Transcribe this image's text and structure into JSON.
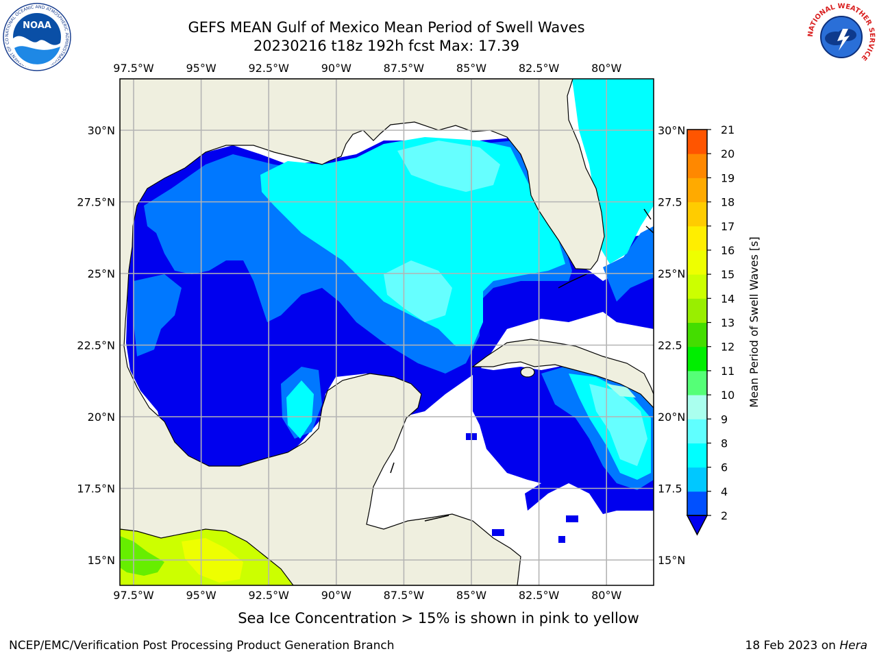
{
  "title": {
    "line1": "GEFS MEAN Gulf of Mexico Mean Period of Swell Waves",
    "line2": "20230216 t18z 192h fcst   Max: 17.39"
  },
  "logos": {
    "noaa_text": "NOAA",
    "noaa_ring": "NATIONAL OCEANIC AND ATMOSPHERIC ADMINISTRATION · U.S. DEPARTMENT OF COMMERCE",
    "nws_ring": "NATIONAL WEATHER SERVICE"
  },
  "map": {
    "lon_labels": [
      "97.5°W",
      "95°W",
      "92.5°W",
      "90°W",
      "87.5°W",
      "85°W",
      "82.5°W",
      "80°W"
    ],
    "lat_labels": [
      "30°N",
      "27.5°N",
      "25°N",
      "22.5°N",
      "20°N",
      "17.5°N",
      "15°N"
    ],
    "lat_labels_right": [
      "30°N",
      "27.5",
      "25°N",
      "22.5",
      "20°N",
      "17.5",
      "15°N"
    ],
    "lon_values": [
      -97.5,
      -95,
      -92.5,
      -90,
      -87.5,
      -85,
      -82.5,
      -80
    ],
    "lat_values": [
      30,
      27.5,
      25,
      22.5,
      20,
      17.5,
      15
    ],
    "colors": {
      "land": "#efefdf",
      "ocean_nodata": "#ffffff",
      "grid": "#b4b4b4"
    }
  },
  "colorbar": {
    "label": "Mean Period of Swell Waves [s]",
    "ticks": [
      "2",
      "4",
      "6",
      "8",
      "9",
      "10",
      "11",
      "12",
      "13",
      "14",
      "15",
      "16",
      "17",
      "18",
      "19",
      "20",
      "21"
    ],
    "colors": [
      "#0050ff",
      "#00c8ff",
      "#00ffff",
      "#60ffff",
      "#aaffee",
      "#55ff77",
      "#00ee00",
      "#44dd00",
      "#99ee00",
      "#ccff00",
      "#eeff00",
      "#ffee00",
      "#ffcc00",
      "#ffaa00",
      "#ff8800",
      "#ff5500",
      "#ff2200",
      "#ff0000"
    ],
    "extend_color": "#0000ee"
  },
  "note": "Sea Ice Concentration > 15% is shown in pink to yellow",
  "footer": {
    "left": "NCEP/EMC/Verification Post Processing Product Generation Branch",
    "date": "18 Feb 2023 on ",
    "machine": "Hera"
  }
}
